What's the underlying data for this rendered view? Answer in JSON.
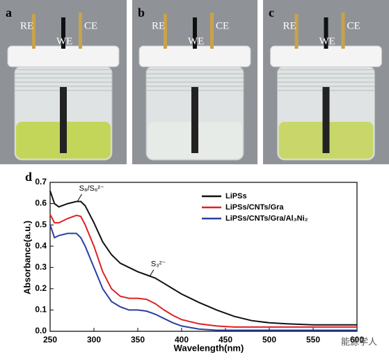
{
  "panels": [
    {
      "label": "a",
      "electrodes": [
        "RE",
        "WE",
        "CE"
      ]
    },
    {
      "label": "b",
      "electrodes": [
        "RE",
        "WE",
        "CE"
      ]
    },
    {
      "label": "c",
      "electrodes": [
        "RE",
        "WE",
        "CE"
      ]
    }
  ],
  "chart_data": {
    "type": "line",
    "label": "d",
    "x_label": "Wavelength(nm)",
    "y_label": "Absorbance(a.u.)",
    "x": [
      250,
      255,
      260,
      270,
      280,
      285,
      290,
      300,
      310,
      320,
      330,
      340,
      350,
      360,
      370,
      380,
      390,
      400,
      420,
      440,
      460,
      480,
      500,
      520,
      550,
      600
    ],
    "series": [
      {
        "name": "LiPSs",
        "color": "#111111",
        "values": [
          0.66,
          0.6,
          0.585,
          0.6,
          0.61,
          0.61,
          0.59,
          0.51,
          0.42,
          0.36,
          0.32,
          0.3,
          0.28,
          0.265,
          0.25,
          0.225,
          0.2,
          0.175,
          0.135,
          0.1,
          0.07,
          0.05,
          0.04,
          0.035,
          0.03,
          0.03
        ]
      },
      {
        "name": "LiPSs/CNTs/Gra",
        "color": "#e02020",
        "values": [
          0.55,
          0.51,
          0.51,
          0.53,
          0.545,
          0.54,
          0.5,
          0.4,
          0.28,
          0.2,
          0.165,
          0.155,
          0.155,
          0.15,
          0.13,
          0.1,
          0.075,
          0.055,
          0.035,
          0.025,
          0.02,
          0.02,
          0.02,
          0.02,
          0.02,
          0.02
        ]
      },
      {
        "name": "LiPSs/CNTs/Gra/Al₃Ni₂",
        "color": "#2a3fa0",
        "values": [
          0.5,
          0.44,
          0.45,
          0.46,
          0.46,
          0.44,
          0.4,
          0.3,
          0.2,
          0.14,
          0.115,
          0.1,
          0.1,
          0.095,
          0.08,
          0.06,
          0.04,
          0.025,
          0.01,
          0.005,
          0.005,
          0.005,
          0.005,
          0.005,
          0.005,
          0.005
        ]
      }
    ],
    "annotations": [
      {
        "text": "S₈/S₆²⁻",
        "x": 283,
        "y": 0.625
      },
      {
        "text": "S₃²⁻",
        "x": 365,
        "y": 0.27
      }
    ],
    "xlim": [
      250,
      600
    ],
    "ylim": [
      0,
      0.7
    ],
    "xticks": [
      250,
      300,
      350,
      400,
      450,
      500,
      550,
      600
    ],
    "yticks": [
      {
        "value": 0,
        "label": "0.0"
      },
      0.1,
      0.2,
      0.3,
      0.4,
      0.5,
      0.6,
      0.7
    ],
    "legend": "upper right"
  },
  "watermark": "能源学人"
}
